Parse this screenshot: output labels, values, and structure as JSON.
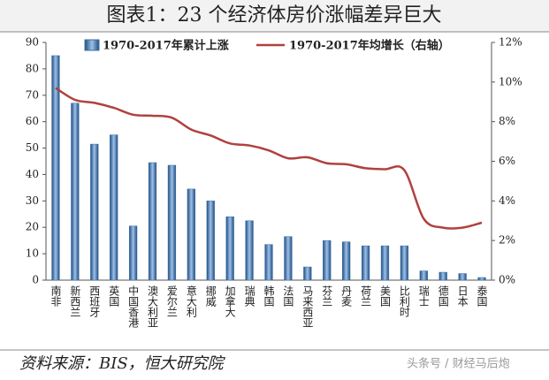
{
  "chart_data": {
    "type": "bar_line",
    "title": "图表1：23 个经济体房价涨幅差异巨大",
    "source": "资料来源：BIS，恒大研究院",
    "watermark": "头条号 / 财经马后炮",
    "categories": [
      "南非",
      "新西兰",
      "西班牙",
      "英国",
      "中国香港",
      "澳大利亚",
      "爱尔兰",
      "意大利",
      "挪威",
      "加拿大",
      "瑞典",
      "韩国",
      "法国",
      "马来西亚",
      "芬兰",
      "丹麦",
      "荷兰",
      "美国",
      "比利时",
      "瑞士",
      "德国",
      "日本",
      "泰国"
    ],
    "series": [
      {
        "name": "1970-2017年累计上涨",
        "color": "#3f6fa6",
        "values": [
          85,
          67,
          51.5,
          55,
          20.5,
          44.5,
          43.5,
          34.5,
          30,
          24,
          22.5,
          13.5,
          16.5,
          5,
          15,
          14.5,
          13,
          13,
          13,
          3.5,
          3,
          2.5,
          1
        ]
      },
      {
        "name": "1970-2017年均增长（右轴）",
        "color": "#b0413e",
        "axis": "y2",
        "values": [
          9.7,
          9.1,
          8.95,
          8.7,
          8.35,
          8.3,
          8.2,
          7.6,
          7.3,
          6.9,
          6.8,
          6.55,
          6.15,
          6.2,
          5.9,
          5.85,
          5.65,
          5.6,
          5.55,
          3.1,
          2.65,
          2.65,
          2.9
        ]
      }
    ],
    "ylim": [
      0,
      90
    ],
    "yticks": [
      0,
      10,
      20,
      30,
      40,
      50,
      60,
      70,
      80,
      90
    ],
    "y2lim": [
      0,
      12
    ],
    "y2ticks": [
      {
        "value": 0,
        "label": "0%"
      },
      {
        "value": 2,
        "label": "2%"
      },
      {
        "value": 4,
        "label": "4%"
      },
      {
        "value": 6,
        "label": "6%"
      },
      {
        "value": 8,
        "label": "8%"
      },
      {
        "value": 10,
        "label": "10%"
      },
      {
        "value": 12,
        "label": "12%"
      }
    ],
    "grid": false
  }
}
